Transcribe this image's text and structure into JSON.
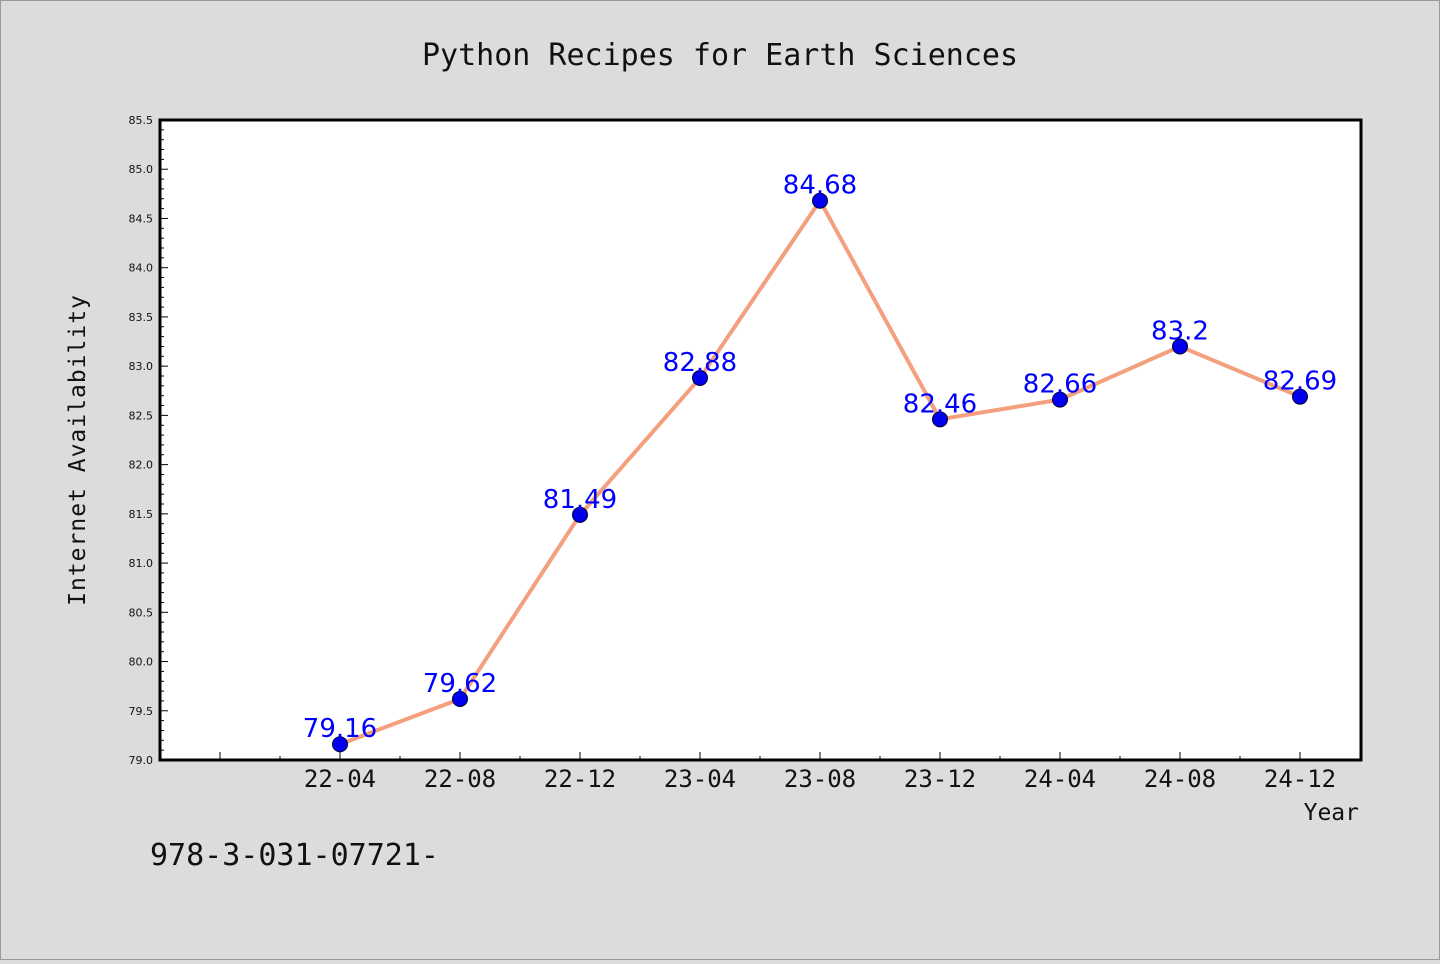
{
  "chart_data": {
    "type": "line",
    "title": "Python Recipes for Earth Sciences",
    "xlabel": "Year",
    "ylabel": "Internet Availability",
    "categories": [
      "22-04",
      "22-08",
      "22-12",
      "23-04",
      "23-08",
      "23-12",
      "24-04",
      "24-08",
      "24-12"
    ],
    "series": [
      {
        "values": [
          79.16,
          79.62,
          81.49,
          82.88,
          84.68,
          82.46,
          82.66,
          83.2,
          82.69
        ]
      }
    ],
    "data_labels": [
      "79.16",
      "79.62",
      "81.49",
      "82.88",
      "84.68",
      "82.46",
      "82.66",
      "83.2",
      "82.69"
    ],
    "ylim": [
      79.0,
      85.5
    ],
    "yticks": [
      "79.0",
      "79.5",
      "80.0",
      "80.5",
      "81.0",
      "81.5",
      "82.0",
      "82.5",
      "83.0",
      "83.5",
      "84.0",
      "84.5",
      "85.0",
      "85.5"
    ],
    "line_color": "#f4a07e",
    "marker_color": "#0000ee",
    "label_color": "#0000ff",
    "grid": false,
    "legend": "none"
  },
  "footer": "978-3-031-07721-"
}
